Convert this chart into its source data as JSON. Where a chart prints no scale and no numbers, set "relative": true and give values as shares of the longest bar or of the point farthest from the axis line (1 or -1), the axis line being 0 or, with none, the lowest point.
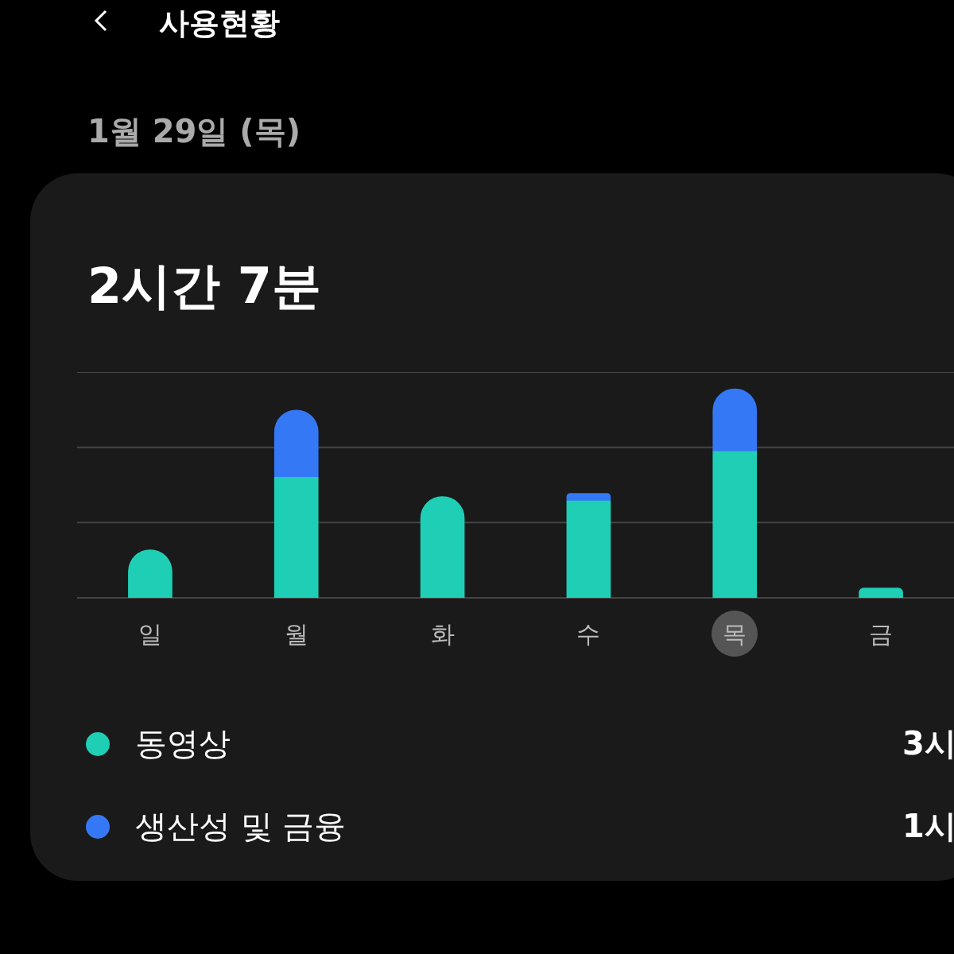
{
  "chart_data": {
    "type": "bar",
    "title": "사용현황",
    "subtitle": "1월 29일 (목)",
    "annotations": [
      "2시간 7분",
      "3시",
      "1시"
    ],
    "categories": [
      "일",
      "월",
      "화",
      "수",
      "목",
      "금"
    ],
    "stacked": true,
    "relative": true,
    "legend": "bottom",
    "ref_lines": [
      {
        "axis": "y",
        "value": 0.36,
        "color": "#444444"
      },
      {
        "axis": "y",
        "value": 0.72,
        "color": "#444444"
      },
      {
        "axis": "y",
        "value": 1.08,
        "color": "#444444"
      }
    ],
    "series": [
      {
        "name": "동영상",
        "color": "#1fcfb5",
        "values": [
          0.23,
          0.577,
          0.485,
          0.464,
          0.7,
          0.047
        ]
      },
      {
        "name": "생산성 및 금융",
        "color": "#3478f6",
        "values": [
          null,
          0.321,
          null,
          0.036,
          0.3,
          null
        ]
      }
    ]
  }
}
